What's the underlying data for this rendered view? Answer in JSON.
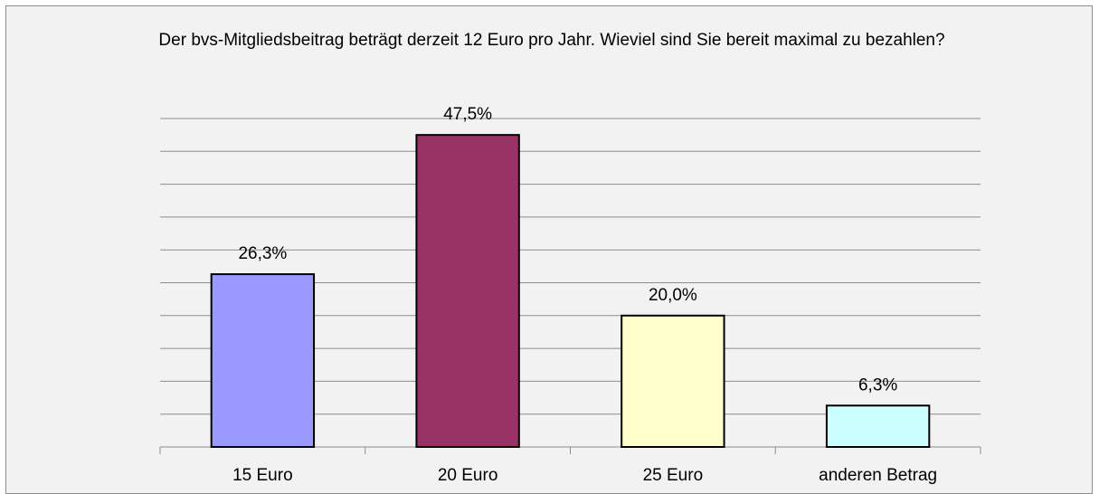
{
  "chart_data": {
    "type": "bar",
    "title": "Der bvs-Mitgliedsbeitrag beträgt derzeit 12 Euro pro Jahr. Wieviel sind Sie bereit maximal zu bezahlen?",
    "categories": [
      "15 Euro",
      "20 Euro",
      "25 Euro",
      "anderen Betrag"
    ],
    "values": [
      26.3,
      47.5,
      20.0,
      6.3
    ],
    "value_labels": [
      "26,3%",
      "47,5%",
      "20,0%",
      "6,3%"
    ],
    "colors": [
      "#9999ff",
      "#993366",
      "#ffffcc",
      "#ccffff"
    ],
    "ylim": [
      0,
      50
    ],
    "yticks": [
      0,
      5,
      10,
      15,
      20,
      25,
      30,
      35,
      40,
      45,
      50
    ],
    "grid": true
  }
}
